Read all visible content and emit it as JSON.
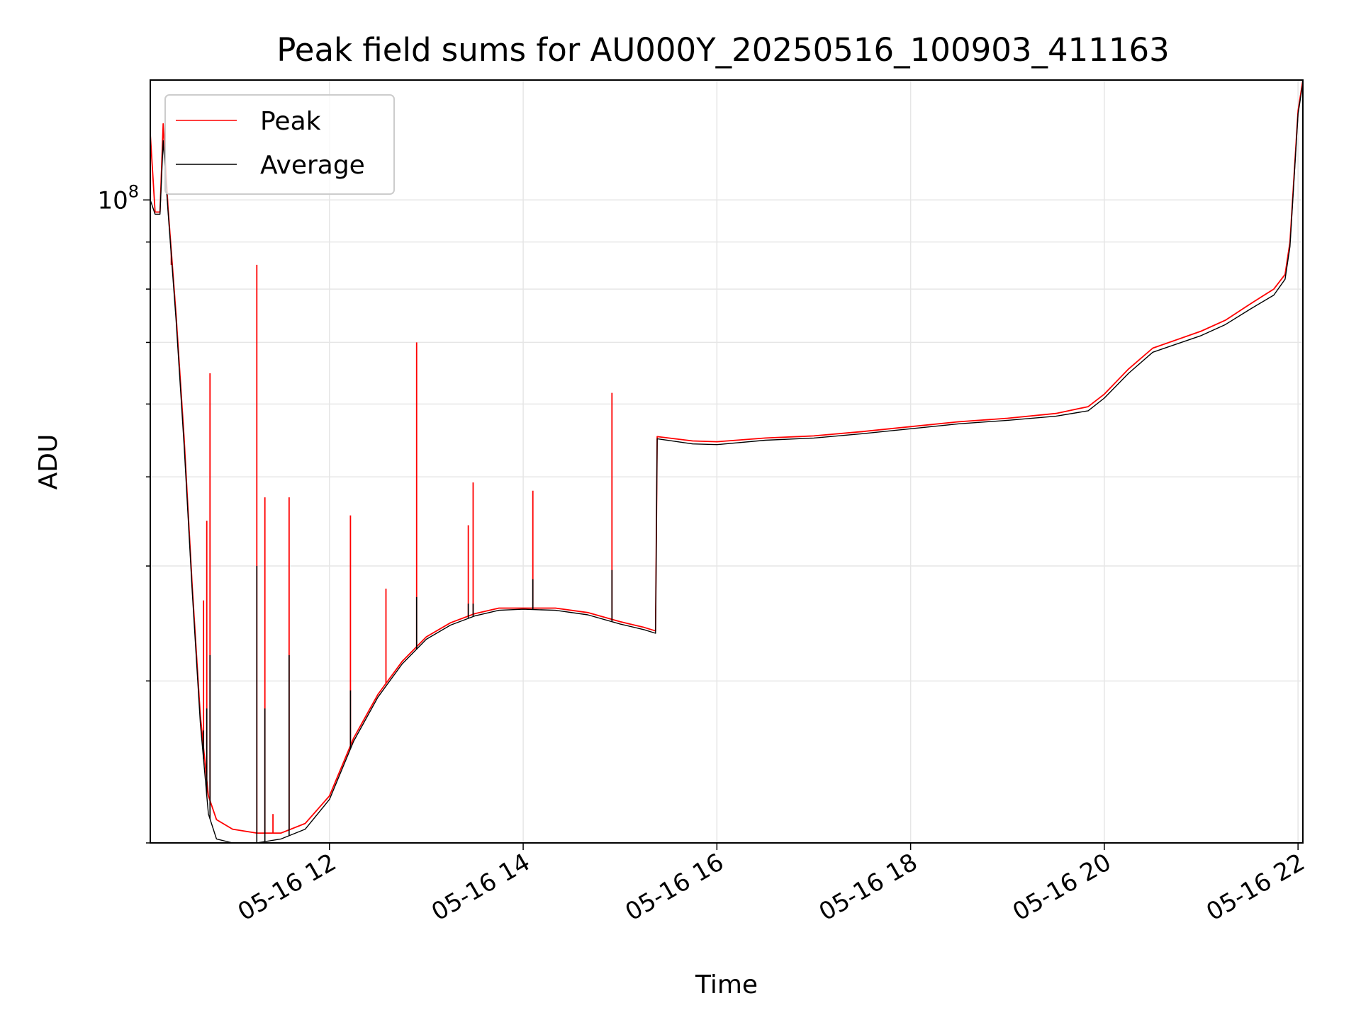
{
  "chart_data": {
    "type": "line",
    "title": "Peak field sums for AU000Y_20250516_100903_411163",
    "xlabel": "Time",
    "ylabel": "ADU",
    "y_scale": "log",
    "ylim": [
      20000000,
      135000000
    ],
    "xlim": [
      "05-16 10:09",
      "05-16 22:03"
    ],
    "x_tick_labels": [
      "05-16 12",
      "05-16 14",
      "05-16 16",
      "05-16 18",
      "05-16 20",
      "05-16 22"
    ],
    "y_tick_labels": [
      "10^8"
    ],
    "grid": true,
    "legend": "upper left",
    "colors": {
      "peak": "#ff0000",
      "average": "#000000"
    },
    "series": [
      {
        "name": "Peak",
        "color": "#ff0000",
        "x": [
          "05-16 10:09",
          "05-16 10:12",
          "05-16 10:15",
          "05-16 10:17",
          "05-16 10:20",
          "05-16 10:25",
          "05-16 10:30",
          "05-16 10:35",
          "05-16 10:40",
          "05-16 10:45",
          "05-16 10:50",
          "05-16 11:00",
          "05-16 11:15",
          "05-16 11:30",
          "05-16 11:45",
          "05-16 12:00",
          "05-16 12:15",
          "05-16 12:30",
          "05-16 12:45",
          "05-16 13:00",
          "05-16 13:15",
          "05-16 13:30",
          "05-16 13:45",
          "05-16 14:00",
          "05-16 14:20",
          "05-16 14:40",
          "05-16 15:00",
          "05-16 15:15",
          "05-16 15:22",
          "05-16 15:23",
          "05-16 15:45",
          "05-16 16:00",
          "05-16 16:30",
          "05-16 17:00",
          "05-16 17:30",
          "05-16 18:00",
          "05-16 18:30",
          "05-16 19:00",
          "05-16 19:30",
          "05-16 19:50",
          "05-16 20:00",
          "05-16 20:15",
          "05-16 20:30",
          "05-16 21:00",
          "05-16 21:15",
          "05-16 21:30",
          "05-16 21:45",
          "05-16 21:52",
          "05-16 21:55",
          "05-16 22:00",
          "05-16 22:03"
        ],
        "values": [
          118000000,
          97000000,
          97000000,
          121000000,
          98000000,
          75000000,
          55000000,
          38000000,
          27500000,
          22500000,
          21200000,
          20700000,
          20500000,
          20500000,
          21000000,
          22500000,
          26000000,
          29000000,
          31500000,
          33500000,
          34700000,
          35500000,
          36000000,
          36000000,
          36000000,
          35600000,
          34800000,
          34300000,
          34000000,
          55300000,
          54700000,
          54600000,
          55100000,
          55400000,
          56000000,
          56700000,
          57400000,
          57900000,
          58600000,
          59600000,
          61500000,
          65500000,
          69000000,
          72000000,
          74000000,
          77000000,
          80000000,
          83000000,
          90000000,
          125000000,
          135000000
        ],
        "spikes": [
          {
            "x": "05-16 10:22",
            "value": 85000000
          },
          {
            "x": "05-16 10:42",
            "value": 36700000
          },
          {
            "x": "05-16 10:44",
            "value": 44800000
          },
          {
            "x": "05-16 10:46",
            "value": 64800000
          },
          {
            "x": "05-16 11:15",
            "value": 85000000
          },
          {
            "x": "05-16 11:20",
            "value": 47500000
          },
          {
            "x": "05-16 11:25",
            "value": 21500000
          },
          {
            "x": "05-16 11:35",
            "value": 47500000
          },
          {
            "x": "05-16 12:13",
            "value": 45400000
          },
          {
            "x": "05-16 12:35",
            "value": 37800000
          },
          {
            "x": "05-16 12:54",
            "value": 70000000
          },
          {
            "x": "05-16 13:26",
            "value": 44300000
          },
          {
            "x": "05-16 13:29",
            "value": 49300000
          },
          {
            "x": "05-16 14:06",
            "value": 48300000
          },
          {
            "x": "05-16 14:55",
            "value": 61700000
          }
        ]
      },
      {
        "name": "Average",
        "color": "#000000",
        "x": [
          "05-16 10:09",
          "05-16 10:12",
          "05-16 10:15",
          "05-16 10:17",
          "05-16 10:20",
          "05-16 10:25",
          "05-16 10:30",
          "05-16 10:35",
          "05-16 10:40",
          "05-16 10:45",
          "05-16 10:50",
          "05-16 11:00",
          "05-16 11:15",
          "05-16 11:30",
          "05-16 11:45",
          "05-16 12:00",
          "05-16 12:15",
          "05-16 12:30",
          "05-16 12:45",
          "05-16 13:00",
          "05-16 13:15",
          "05-16 13:30",
          "05-16 13:45",
          "05-16 14:00",
          "05-16 14:20",
          "05-16 14:40",
          "05-16 15:00",
          "05-16 15:15",
          "05-16 15:22",
          "05-16 15:23",
          "05-16 15:45",
          "05-16 16:00",
          "05-16 16:30",
          "05-16 17:00",
          "05-16 17:30",
          "05-16 18:00",
          "05-16 18:30",
          "05-16 19:00",
          "05-16 19:30",
          "05-16 19:50",
          "05-16 20:00",
          "05-16 20:15",
          "05-16 20:30",
          "05-16 21:00",
          "05-16 21:15",
          "05-16 21:30",
          "05-16 21:45",
          "05-16 21:52",
          "05-16 21:55",
          "05-16 22:00",
          "05-16 22:03"
        ],
        "values": [
          100000000,
          96500000,
          96500000,
          116000000,
          97000000,
          74000000,
          54000000,
          37500000,
          27000000,
          21500000,
          20200000,
          20000000,
          20000000,
          20200000,
          20700000,
          22300000,
          25800000,
          28800000,
          31300000,
          33300000,
          34500000,
          35300000,
          35800000,
          35900000,
          35800000,
          35400000,
          34600000,
          34100000,
          33800000,
          55000000,
          54300000,
          54200000,
          54800000,
          55100000,
          55700000,
          56400000,
          57100000,
          57600000,
          58200000,
          59000000,
          60900000,
          64800000,
          68300000,
          71200000,
          73200000,
          76000000,
          78800000,
          82000000,
          89000000,
          124000000,
          134000000
        ],
        "spikes": [
          {
            "x": "05-16 10:42",
            "value": 26500000
          },
          {
            "x": "05-16 10:44",
            "value": 28000000
          },
          {
            "x": "05-16 10:46",
            "value": 32000000
          },
          {
            "x": "05-16 11:15",
            "value": 40000000
          },
          {
            "x": "05-16 11:20",
            "value": 28000000
          },
          {
            "x": "05-16 11:35",
            "value": 32000000
          },
          {
            "x": "05-16 12:13",
            "value": 29300000
          },
          {
            "x": "05-16 12:54",
            "value": 37000000
          },
          {
            "x": "05-16 13:26",
            "value": 36400000
          },
          {
            "x": "05-16 13:29",
            "value": 36400000
          },
          {
            "x": "05-16 14:06",
            "value": 38700000
          },
          {
            "x": "05-16 14:55",
            "value": 39600000
          }
        ]
      }
    ]
  }
}
